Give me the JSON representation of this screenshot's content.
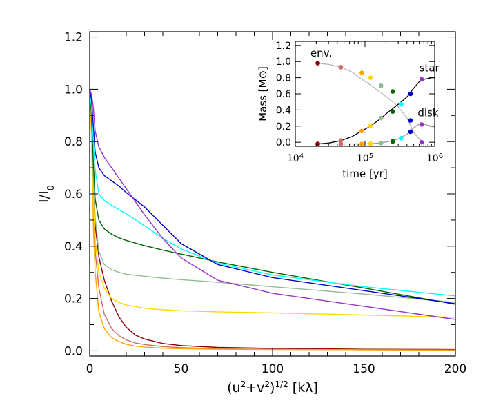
{
  "chart_data": [
    {
      "type": "line",
      "title": "",
      "xlabel": "(u²+v²)^{1/2} [kλ]",
      "ylabel": "I/I₀",
      "xlim": [
        0,
        200
      ],
      "ylim": [
        -0.02,
        1.22
      ],
      "xticks": [
        0,
        50,
        100,
        150,
        200
      ],
      "yticks": [
        0.0,
        0.2,
        0.4,
        0.6,
        0.8,
        1.0,
        1.2
      ],
      "x_tick_labels": [
        "0",
        "50",
        "100",
        "150",
        "200"
      ],
      "y_tick_labels": [
        "0.0",
        "0.2",
        "0.4",
        "0.6",
        "0.8",
        "1.0",
        "1.2"
      ],
      "grid": false,
      "series": [
        {
          "color": "#8b0000",
          "x": [
            0,
            1,
            2,
            3,
            5,
            8,
            12,
            16,
            20,
            25,
            30,
            40,
            50,
            70,
            100,
            150,
            200
          ],
          "y": [
            1.0,
            0.88,
            0.62,
            0.48,
            0.36,
            0.27,
            0.19,
            0.13,
            0.09,
            0.06,
            0.045,
            0.028,
            0.02,
            0.013,
            0.009,
            0.006,
            0.005
          ]
        },
        {
          "color": "#cd6b6b",
          "x": [
            0,
            1,
            2,
            3,
            5,
            8,
            12,
            16,
            20,
            25,
            30,
            40,
            50,
            70,
            100,
            150,
            200
          ],
          "y": [
            1.0,
            0.85,
            0.55,
            0.38,
            0.24,
            0.14,
            0.085,
            0.058,
            0.042,
            0.03,
            0.024,
            0.016,
            0.012,
            0.008,
            0.006,
            0.004,
            0.003
          ]
        },
        {
          "color": "#ffa500",
          "x": [
            0,
            1,
            2,
            3,
            5,
            8,
            12,
            16,
            20,
            25,
            30,
            40,
            50,
            70,
            100,
            150,
            200
          ],
          "y": [
            1.0,
            0.82,
            0.48,
            0.3,
            0.15,
            0.085,
            0.05,
            0.035,
            0.025,
            0.018,
            0.014,
            0.01,
            0.008,
            0.006,
            0.005,
            0.004,
            0.003
          ]
        },
        {
          "color": "#ffd700",
          "x": [
            0,
            1,
            2,
            3,
            5,
            8,
            12,
            16,
            20,
            30,
            40,
            50,
            70,
            100,
            150,
            200
          ],
          "y": [
            1.0,
            0.85,
            0.58,
            0.42,
            0.3,
            0.24,
            0.2,
            0.185,
            0.175,
            0.163,
            0.157,
            0.153,
            0.149,
            0.145,
            0.137,
            0.128
          ]
        },
        {
          "color": "#8fbc8f",
          "x": [
            0,
            1,
            2,
            3,
            5,
            8,
            12,
            16,
            20,
            30,
            40,
            50,
            70,
            100,
            150,
            200
          ],
          "y": [
            1.0,
            0.88,
            0.66,
            0.51,
            0.38,
            0.33,
            0.31,
            0.3,
            0.293,
            0.285,
            0.278,
            0.272,
            0.262,
            0.245,
            0.217,
            0.185
          ]
        },
        {
          "color": "#006400",
          "x": [
            0,
            1,
            2,
            3,
            5,
            8,
            12,
            16,
            20,
            30,
            40,
            50,
            70,
            100,
            150,
            200
          ],
          "y": [
            1.0,
            0.9,
            0.72,
            0.58,
            0.5,
            0.466,
            0.446,
            0.432,
            0.422,
            0.402,
            0.385,
            0.37,
            0.34,
            0.3,
            0.24,
            0.178
          ]
        },
        {
          "color": "#00ffff",
          "x": [
            0,
            1,
            2,
            3,
            5,
            8,
            12,
            16,
            20,
            30,
            40,
            50,
            70,
            100,
            150,
            200
          ],
          "y": [
            1.0,
            0.93,
            0.8,
            0.69,
            0.6,
            0.575,
            0.556,
            0.54,
            0.524,
            0.478,
            0.43,
            0.39,
            0.335,
            0.29,
            0.245,
            0.21
          ]
        },
        {
          "color": "#0000cd",
          "x": [
            0,
            1,
            2,
            3,
            5,
            8,
            12,
            16,
            20,
            30,
            40,
            50,
            70,
            100,
            150,
            200
          ],
          "y": [
            1.0,
            0.96,
            0.86,
            0.76,
            0.7,
            0.67,
            0.65,
            0.63,
            0.605,
            0.55,
            0.48,
            0.41,
            0.33,
            0.28,
            0.23,
            0.18
          ]
        },
        {
          "color": "#9932cc",
          "x": [
            0,
            1,
            2,
            3,
            5,
            8,
            12,
            16,
            20,
            30,
            40,
            50,
            70,
            100,
            150,
            200
          ],
          "y": [
            1.0,
            0.98,
            0.93,
            0.84,
            0.78,
            0.74,
            0.7,
            0.66,
            0.62,
            0.52,
            0.43,
            0.355,
            0.27,
            0.22,
            0.17,
            0.12
          ]
        }
      ]
    },
    {
      "type": "line",
      "title": "",
      "xlabel": "time [yr]",
      "ylabel": "Mass [M⊙]",
      "xscale": "log",
      "xlim": [
        10000,
        1000000
      ],
      "ylim": [
        -0.05,
        1.25
      ],
      "xticks": [
        10000,
        100000,
        1000000
      ],
      "x_tick_base": "10",
      "x_tick_exponents": [
        "4",
        "5",
        "6"
      ],
      "yticks": [
        0.0,
        0.2,
        0.4,
        0.6,
        0.8,
        1.0,
        1.2
      ],
      "y_tick_labels": [
        "0.0",
        "0.2",
        "0.4",
        "0.6",
        "0.8",
        "1.0",
        "1.2"
      ],
      "annotations": [
        {
          "text": "env.",
          "x": 16500,
          "y": 1.06
        },
        {
          "text": "star",
          "x": 600000,
          "y": 0.88
        },
        {
          "text": "disk",
          "x": 570000,
          "y": 0.32
        }
      ],
      "series": [
        {
          "name": "env.",
          "color": "#b8b8b8",
          "x": [
            21000,
            30000,
            45000,
            65000,
            90000,
            120000,
            160000,
            220000,
            300000,
            400000,
            500000,
            600000,
            680000
          ],
          "y": [
            0.98,
            0.965,
            0.93,
            0.87,
            0.78,
            0.71,
            0.63,
            0.54,
            0.44,
            0.3,
            0.12,
            0.04,
            0.0
          ]
        },
        {
          "name": "star",
          "color": "#000000",
          "x": [
            21000,
            30000,
            45000,
            65000,
            90000,
            120000,
            160000,
            220000,
            300000,
            400000,
            500000,
            600000,
            700000,
            800000,
            900000,
            1000000
          ],
          "y": [
            -0.02,
            -0.01,
            0.02,
            0.07,
            0.14,
            0.2,
            0.28,
            0.38,
            0.47,
            0.56,
            0.67,
            0.75,
            0.78,
            0.79,
            0.8,
            0.8
          ]
        },
        {
          "name": "disk",
          "color": "#9a9a9a",
          "x": [
            21000,
            30000,
            45000,
            65000,
            90000,
            120000,
            160000,
            220000,
            300000,
            400000,
            460000,
            520000,
            580000,
            650000,
            700000,
            800000,
            1000000
          ],
          "y": [
            -0.02,
            -0.02,
            -0.02,
            -0.02,
            -0.02,
            -0.018,
            -0.01,
            0.01,
            0.04,
            0.1,
            0.15,
            0.19,
            0.22,
            0.23,
            0.225,
            0.21,
            0.19
          ]
        }
      ],
      "markers": [
        {
          "color": "#8b0000",
          "x": 21000,
          "env": 0.98,
          "star": -0.02,
          "disk": -0.02
        },
        {
          "color": "#cd6b6b",
          "x": 45000,
          "env": 0.93,
          "star": 0.02,
          "disk": -0.02
        },
        {
          "color": "#ffa500",
          "x": 90000,
          "env": 0.86,
          "star": 0.14,
          "disk": -0.02
        },
        {
          "color": "#ffd700",
          "x": 120000,
          "env": 0.8,
          "star": 0.2,
          "disk": -0.018
        },
        {
          "color": "#8fbc8f",
          "x": 170000,
          "env": 0.7,
          "star": 0.3,
          "disk": -0.01
        },
        {
          "color": "#006400",
          "x": 250000,
          "env": 0.63,
          "star": 0.38,
          "disk": 0.01
        },
        {
          "color": "#00ffff",
          "x": 330000,
          "env": 0.47,
          "star": 0.47,
          "disk": 0.05
        },
        {
          "color": "#0000cd",
          "x": 450000,
          "env": 0.27,
          "star": 0.6,
          "disk": 0.13
        },
        {
          "color": "#9932cc",
          "x": 650000,
          "env": 0.0,
          "star": 0.78,
          "disk": 0.22
        }
      ]
    }
  ]
}
